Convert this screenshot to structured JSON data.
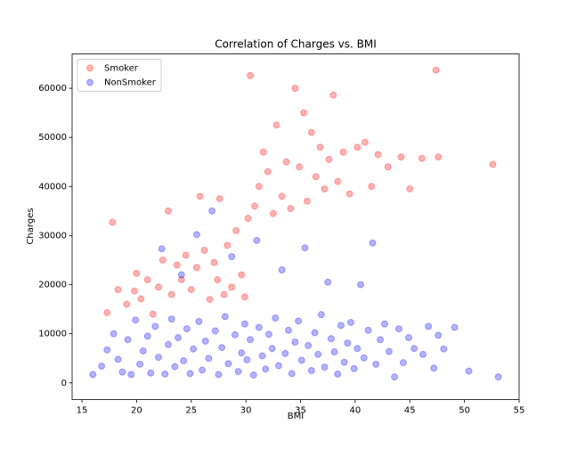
{
  "chart_data": {
    "type": "scatter",
    "title": "Correlation of Charges vs. BMI",
    "x_label": "BMI",
    "y_label": "Charges",
    "xlim": [
      14.1,
      55.0
    ],
    "ylim": [
      -3400,
      67000
    ],
    "xticks": [
      15,
      20,
      25,
      30,
      35,
      40,
      45,
      50,
      55
    ],
    "yticks": [
      0,
      10000,
      20000,
      30000,
      40000,
      50000,
      60000
    ],
    "legend": "upper left",
    "alpha": 0.3,
    "series": [
      {
        "name": "Smoker",
        "color": "#ff0000",
        "x": [
          17.3,
          17.8,
          18.3,
          19.1,
          19.8,
          20.0,
          20.4,
          21.0,
          21.5,
          22.0,
          22.4,
          22.9,
          23.2,
          23.7,
          24.1,
          24.5,
          25.0,
          25.5,
          25.8,
          26.2,
          26.7,
          27.1,
          27.4,
          27.6,
          28.0,
          28.3,
          28.7,
          29.1,
          29.6,
          29.9,
          30.2,
          30.4,
          30.8,
          31.2,
          31.6,
          32.0,
          32.5,
          32.8,
          33.3,
          33.7,
          34.1,
          34.5,
          34.9,
          35.3,
          35.6,
          36.0,
          36.4,
          36.8,
          37.2,
          37.6,
          38.0,
          38.4,
          38.9,
          39.5,
          40.2,
          40.9,
          41.5,
          42.1,
          43.0,
          44.2,
          45.0,
          46.1,
          47.4,
          47.6,
          52.6
        ],
        "values": [
          14300,
          32700,
          19000,
          16000,
          18700,
          22300,
          17100,
          21000,
          14000,
          19500,
          25000,
          35000,
          18000,
          24000,
          21000,
          26000,
          19000,
          23500,
          38000,
          27000,
          17000,
          24500,
          21000,
          37500,
          18000,
          28000,
          19500,
          31000,
          22000,
          17500,
          33500,
          62600,
          36000,
          40000,
          47000,
          43000,
          34500,
          52500,
          38000,
          45000,
          35500,
          60000,
          44000,
          55000,
          37000,
          51000,
          42000,
          48000,
          39500,
          45500,
          58600,
          41000,
          47000,
          38500,
          48000,
          49000,
          40000,
          46500,
          44000,
          46000,
          39500,
          45700,
          63700,
          46000,
          44500
        ]
      },
      {
        "name": "NonSmoker",
        "color": "#0000ff",
        "x": [
          16.0,
          16.8,
          17.3,
          17.9,
          18.3,
          18.7,
          19.2,
          19.5,
          19.9,
          20.3,
          20.6,
          21.0,
          21.3,
          21.7,
          22.0,
          22.3,
          22.6,
          22.9,
          23.2,
          23.5,
          23.8,
          24.1,
          24.3,
          24.6,
          24.9,
          25.2,
          25.5,
          25.7,
          26.0,
          26.3,
          26.6,
          26.9,
          27.2,
          27.5,
          27.8,
          28.1,
          28.4,
          28.7,
          29.0,
          29.3,
          29.6,
          29.9,
          30.1,
          30.4,
          30.7,
          31.0,
          31.2,
          31.5,
          31.8,
          32.1,
          32.4,
          32.7,
          33.0,
          33.3,
          33.6,
          33.9,
          34.2,
          34.5,
          34.8,
          35.1,
          35.4,
          35.7,
          36.0,
          36.3,
          36.6,
          36.9,
          37.2,
          37.5,
          37.8,
          38.1,
          38.4,
          38.7,
          39.0,
          39.3,
          39.6,
          39.9,
          40.2,
          40.5,
          40.8,
          41.2,
          41.6,
          41.9,
          42.3,
          42.7,
          43.1,
          43.6,
          44.0,
          44.4,
          44.9,
          45.4,
          46.2,
          46.7,
          47.2,
          47.6,
          48.1,
          49.1,
          50.4,
          53.1
        ],
        "values": [
          1700,
          3400,
          6700,
          10000,
          4800,
          2200,
          8800,
          1700,
          12800,
          3800,
          6500,
          9500,
          2000,
          11500,
          5200,
          27300,
          1800,
          7800,
          13000,
          3300,
          9200,
          22000,
          4500,
          11000,
          1900,
          6900,
          30200,
          12500,
          2600,
          8500,
          5000,
          35000,
          10600,
          1700,
          7200,
          13500,
          3900,
          25700,
          9800,
          2300,
          6100,
          12000,
          4700,
          8800,
          1600,
          29000,
          11300,
          5500,
          2800,
          9900,
          7000,
          13200,
          3500,
          23000,
          6000,
          10700,
          1900,
          8300,
          12600,
          4600,
          27500,
          7600,
          2500,
          10200,
          5800,
          13900,
          3200,
          20500,
          9000,
          6300,
          1800,
          11700,
          4200,
          8100,
          12300,
          2900,
          7000,
          20000,
          5100,
          10700,
          28500,
          3800,
          8800,
          12000,
          6400,
          1200,
          11000,
          4100,
          9200,
          7000,
          5800,
          11500,
          3000,
          9700,
          6900,
          11300,
          2400,
          1200
        ]
      }
    ]
  }
}
